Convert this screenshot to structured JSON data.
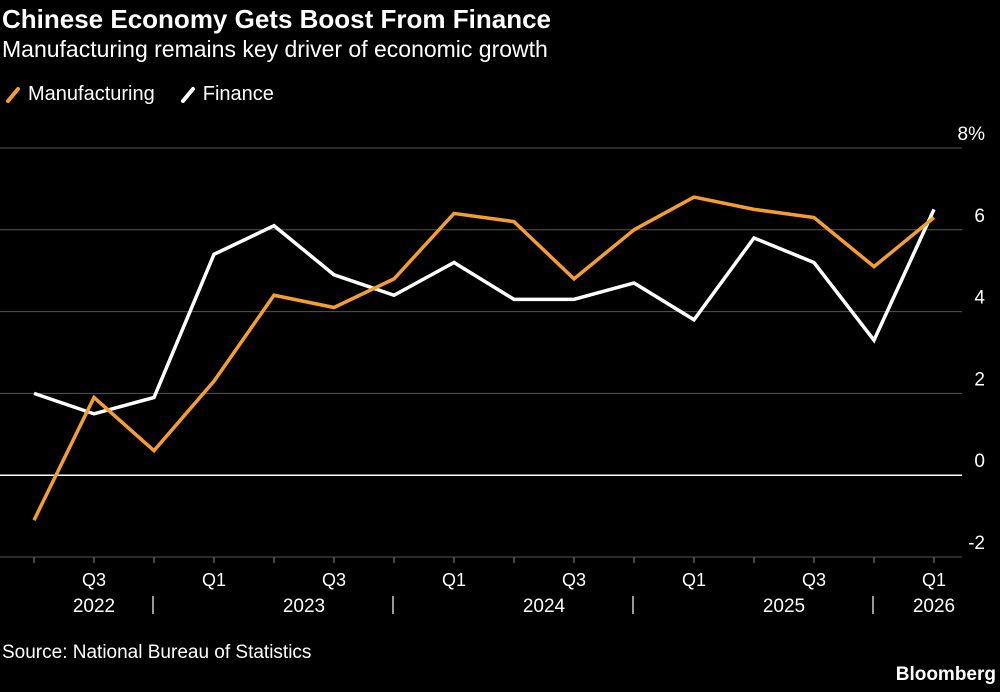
{
  "header": {
    "title": "Chinese Economy Gets Boost From Finance",
    "subtitle": "Manufacturing remains key driver of economic growth"
  },
  "footer": {
    "source": "Source: National Bureau of Statistics",
    "brand": "Bloomberg"
  },
  "colors": {
    "manufacturing": "#f59e2e",
    "finance": "#ffffff",
    "background": "#000000",
    "grid": "#555555"
  },
  "chart_data": {
    "type": "line",
    "title": "Chinese Economy Gets Boost From Finance",
    "subtitle": "Manufacturing remains key driver of economic growth",
    "x": [
      "2022-Q2",
      "2022-Q3",
      "2022-Q4",
      "2023-Q1",
      "2023-Q2",
      "2023-Q3",
      "2023-Q4",
      "2024-Q1",
      "2024-Q2",
      "2024-Q3",
      "2024-Q4",
      "2025-Q1",
      "2025-Q2",
      "2025-Q3",
      "2025-Q4",
      "2026-Q1"
    ],
    "series": [
      {
        "name": "Manufacturing",
        "color": "#f59e2e",
        "values": [
          -1.1,
          1.9,
          0.6,
          2.3,
          4.4,
          4.1,
          4.8,
          6.4,
          6.2,
          4.8,
          6.0,
          6.8,
          6.5,
          6.3,
          5.1,
          6.3
        ]
      },
      {
        "name": "Finance",
        "color": "#ffffff",
        "values": [
          2.0,
          1.5,
          1.9,
          5.4,
          6.1,
          4.9,
          4.4,
          5.2,
          4.3,
          4.3,
          4.7,
          3.8,
          5.8,
          5.2,
          3.3,
          6.5
        ]
      }
    ],
    "ylim": [
      -2,
      8
    ],
    "y_ticks": [
      "-2",
      "0",
      "2",
      "4",
      "6",
      "8%"
    ],
    "y_tick_values": [
      -2,
      0,
      2,
      4,
      6,
      8
    ],
    "x_quarter_labels": [
      {
        "index": 1,
        "label": "Q3"
      },
      {
        "index": 3,
        "label": "Q1"
      },
      {
        "index": 5,
        "label": "Q3"
      },
      {
        "index": 7,
        "label": "Q1"
      },
      {
        "index": 9,
        "label": "Q3"
      },
      {
        "index": 11,
        "label": "Q1"
      },
      {
        "index": 13,
        "label": "Q3"
      },
      {
        "index": 15,
        "label": "Q1"
      }
    ],
    "x_year_labels": [
      {
        "center": 1,
        "label": "2022"
      },
      {
        "center": 4.5,
        "label": "2023"
      },
      {
        "center": 8.5,
        "label": "2024"
      },
      {
        "center": 12.5,
        "label": "2025"
      },
      {
        "center": 15,
        "label": "2026"
      }
    ],
    "year_separators": [
      2,
      6,
      10,
      14
    ],
    "y_axis_side": "right",
    "grid": true,
    "legend_position": "top-left"
  }
}
